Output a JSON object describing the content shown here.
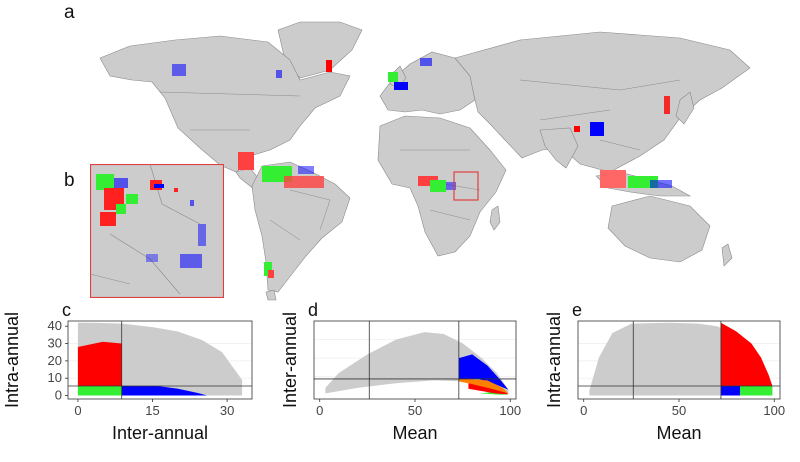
{
  "panels": {
    "a": "a",
    "b": "b"
  },
  "colors": {
    "land": "#cccccc",
    "ocean": "#ffffff",
    "border": "#8a8a8a",
    "red": "#ff0000",
    "green": "#33ee33",
    "blue": "#0000ff",
    "orange": "#ff7f00",
    "inset_frame": "#e04040"
  },
  "chart_data": [
    {
      "panel": "c",
      "type": "scatter",
      "xlabel": "Inter-annual",
      "ylabel": "Intra-annual",
      "xticks": [
        "0",
        "15",
        "30"
      ],
      "yticks": [
        "0",
        "10",
        "20",
        "30",
        "40"
      ],
      "xlim": [
        -2,
        35
      ],
      "ylim": [
        -2,
        43
      ],
      "threshold_x": 8.8,
      "threshold_y": 5.5,
      "cloud_upper": [
        [
          0,
          42
        ],
        [
          3,
          42
        ],
        [
          9,
          41.5
        ],
        [
          15,
          39.5
        ],
        [
          20,
          37
        ],
        [
          25,
          32
        ],
        [
          29,
          25
        ],
        [
          31,
          17
        ],
        [
          33,
          9
        ],
        [
          33,
          5
        ]
      ],
      "cloud_lower": [
        [
          0,
          0
        ],
        [
          33,
          0
        ]
      ],
      "region_red": [
        [
          0,
          5.5
        ],
        [
          0,
          28
        ],
        [
          5,
          31
        ],
        [
          8.8,
          30
        ],
        [
          8.8,
          5.5
        ]
      ],
      "region_green": [
        [
          0,
          0
        ],
        [
          8.8,
          0
        ],
        [
          8.8,
          5.5
        ],
        [
          0,
          5.5
        ]
      ],
      "region_blue": [
        [
          8.8,
          0
        ],
        [
          26,
          0
        ],
        [
          24,
          1.5
        ],
        [
          20,
          4
        ],
        [
          16,
          5.5
        ],
        [
          8.8,
          5.5
        ]
      ]
    },
    {
      "panel": "d",
      "type": "scatter",
      "xlabel": "Mean",
      "ylabel": "Inter-annual",
      "xticks": [
        "0",
        "50",
        "100"
      ],
      "yticks": [],
      "xlim": [
        -3,
        103
      ],
      "ylim": [
        -2,
        40
      ],
      "threshold_x": 73,
      "threshold_y": 8.8,
      "vline_extra": 26,
      "cloud_upper": [
        [
          3,
          4
        ],
        [
          10,
          12
        ],
        [
          25,
          22
        ],
        [
          40,
          30
        ],
        [
          55,
          34
        ],
        [
          65,
          33
        ],
        [
          75,
          28
        ],
        [
          85,
          20
        ],
        [
          93,
          12
        ],
        [
          99,
          3
        ]
      ],
      "cloud_lower": [
        [
          3,
          1
        ],
        [
          20,
          4
        ],
        [
          40,
          6.5
        ],
        [
          60,
          8
        ],
        [
          75,
          7.5
        ],
        [
          90,
          4
        ],
        [
          99,
          0.5
        ]
      ],
      "region_red": [
        [
          78,
          3.5
        ],
        [
          92,
          1
        ],
        [
          99,
          0.5
        ],
        [
          96,
          3
        ],
        [
          85,
          6
        ],
        [
          78,
          7
        ]
      ],
      "region_green": [
        [
          84,
          1
        ],
        [
          95,
          0.3
        ],
        [
          99,
          0.5
        ],
        [
          93,
          2
        ]
      ],
      "region_blue": [
        [
          73,
          8.8
        ],
        [
          73,
          20
        ],
        [
          80,
          22
        ],
        [
          88,
          16
        ],
        [
          95,
          8
        ],
        [
          99,
          3
        ],
        [
          92,
          6
        ],
        [
          83,
          8.8
        ]
      ],
      "region_orange": [
        [
          73,
          7.5
        ],
        [
          73,
          8.8
        ],
        [
          88,
          8
        ],
        [
          96,
          4
        ],
        [
          99,
          1
        ],
        [
          90,
          3.5
        ],
        [
          80,
          6
        ]
      ]
    },
    {
      "panel": "e",
      "type": "scatter",
      "xlabel": "Mean",
      "ylabel": "Intra-annual",
      "xticks": [
        "0",
        "50",
        "100"
      ],
      "yticks": [],
      "xlim": [
        -3,
        103
      ],
      "ylim": [
        -2,
        43
      ],
      "threshold_x": 72,
      "threshold_y": 5.5,
      "vline_extra": 26,
      "cloud_upper": [
        [
          3,
          3
        ],
        [
          8,
          22
        ],
        [
          15,
          36
        ],
        [
          25,
          41.5
        ],
        [
          45,
          42
        ],
        [
          60,
          41.5
        ],
        [
          70,
          40
        ],
        [
          80,
          35
        ],
        [
          90,
          25
        ],
        [
          97,
          12
        ],
        [
          99,
          3
        ]
      ],
      "cloud_lower": [
        [
          3,
          0
        ],
        [
          99,
          0
        ]
      ],
      "region_red": [
        [
          72,
          5.5
        ],
        [
          72,
          42
        ],
        [
          80,
          37
        ],
        [
          88,
          30
        ],
        [
          93,
          22
        ],
        [
          97,
          12
        ],
        [
          99,
          5.5
        ]
      ],
      "region_green": [
        [
          72,
          0
        ],
        [
          99,
          0
        ],
        [
          99,
          5.5
        ],
        [
          72,
          5.5
        ]
      ],
      "region_blue": [
        [
          72,
          0
        ],
        [
          82,
          0
        ],
        [
          82,
          5.5
        ],
        [
          72,
          5.5
        ]
      ]
    }
  ]
}
